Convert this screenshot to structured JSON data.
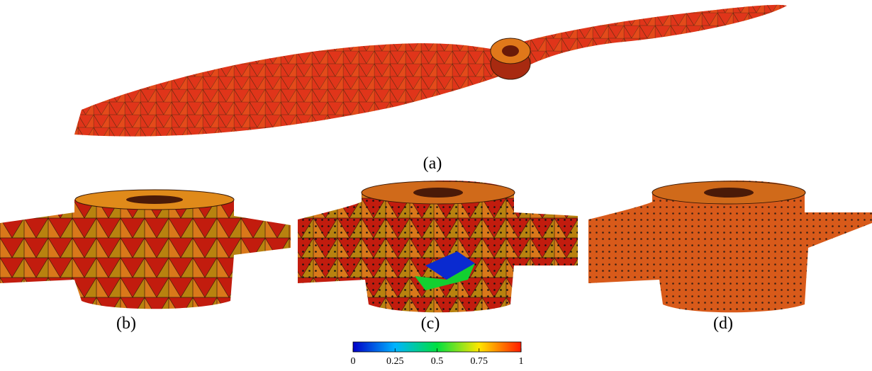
{
  "panels": [
    {
      "label": "(a)"
    },
    {
      "label": "(b)"
    },
    {
      "label": "(c)"
    },
    {
      "label": "(d)"
    }
  ],
  "colorbar": {
    "range": [
      0,
      1
    ],
    "ticks": [
      0,
      0.25,
      0.5,
      0.75,
      1
    ]
  }
}
